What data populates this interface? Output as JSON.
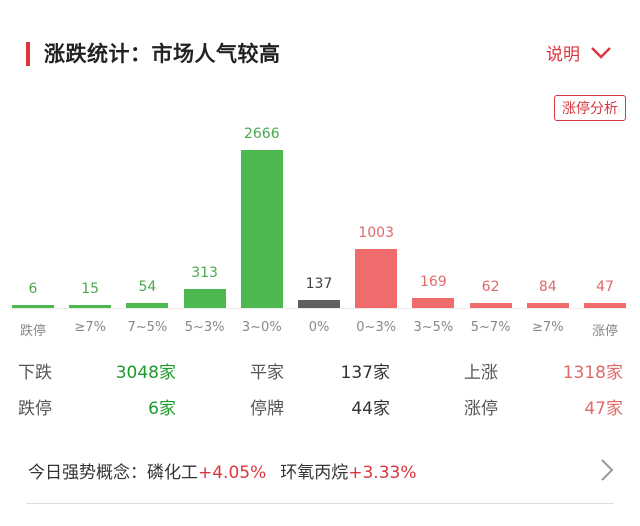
{
  "header": {
    "title": "涨跌统计：市场人气较高",
    "explain_label": "说明",
    "explain_icon": "chevron-down-icon",
    "limit_up_analysis_button": "涨停分析"
  },
  "colors": {
    "accent": "#d9363e",
    "down_green": "#4cb84f",
    "up_red": "#f06b6b",
    "flat_gray": "#5f5f5f",
    "down_text": "#1e9a2c",
    "up_text": "#e06a6a"
  },
  "chart_data": {
    "type": "bar",
    "title": "涨跌统计",
    "categories": [
      "跌停",
      "≥7%",
      "7~5%",
      "5~3%",
      "3~0%",
      "0%",
      "0~3%",
      "3~5%",
      "5~7%",
      "≥7%",
      "涨停"
    ],
    "values": [
      6,
      15,
      54,
      313,
      2666,
      137,
      1003,
      169,
      62,
      84,
      47
    ],
    "colors": [
      "#4cb84f",
      "#4cb84f",
      "#4cb84f",
      "#4cb84f",
      "#4cb84f",
      "#5f5f5f",
      "#f06b6b",
      "#f06b6b",
      "#f06b6b",
      "#f06b6b",
      "#f06b6b"
    ],
    "xlabel": "",
    "ylabel": "",
    "grid": false,
    "legend": "none"
  },
  "chart_labels": {
    "values": [
      "6",
      "15",
      "54",
      "313",
      "2666",
      "137",
      "1003",
      "169",
      "62",
      "84",
      "47"
    ],
    "categories": [
      "跌停",
      "≥7%",
      "7~5%",
      "5~3%",
      "3~0%",
      "0%",
      "0~3%",
      "3~5%",
      "5~7%",
      "≥7%",
      "涨停"
    ]
  },
  "stats": {
    "row1": [
      {
        "label": "下跌",
        "value": "3048家"
      },
      {
        "label": "平家",
        "value": "137家"
      },
      {
        "label": "上涨",
        "value": "1318家"
      }
    ],
    "row2": [
      {
        "label": "跌停",
        "value": "6家"
      },
      {
        "label": "停牌",
        "value": "44家"
      },
      {
        "label": "涨停",
        "value": "47家"
      }
    ]
  },
  "concept": {
    "prefix": "今日强势概念：",
    "items": [
      {
        "name": "磷化工",
        "change": "+4.05%"
      },
      {
        "name": "环氧丙烷",
        "change": "+3.33%"
      }
    ],
    "more_icon": "chevron-right-icon"
  }
}
